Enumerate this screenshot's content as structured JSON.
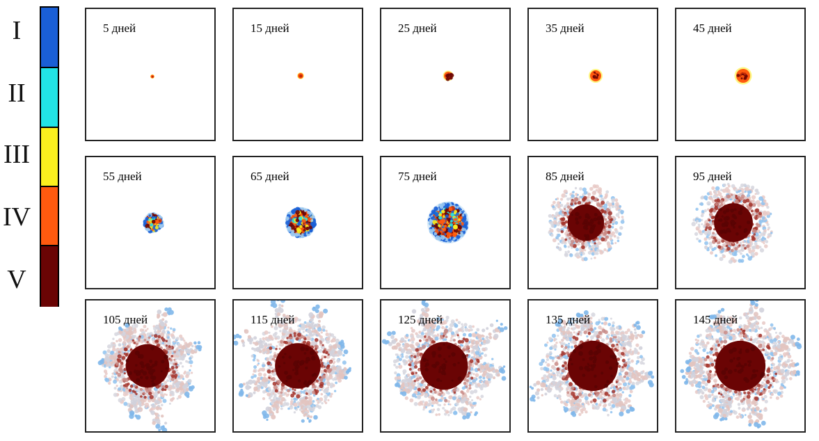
{
  "legend": {
    "stages": [
      {
        "label": "I",
        "color": "#1a5fd6"
      },
      {
        "label": "II",
        "color": "#22e4e6"
      },
      {
        "label": "III",
        "color": "#fbf01e"
      },
      {
        "label": "IV",
        "color": "#ff5a0f"
      },
      {
        "label": "V",
        "color": "#6a0404"
      }
    ]
  },
  "panels": [
    {
      "label": "5 дней",
      "stage": "tiny"
    },
    {
      "label": "15 дней",
      "stage": "tiny"
    },
    {
      "label": "25 дней",
      "stage": "small"
    },
    {
      "label": "35 дней",
      "stage": "small"
    },
    {
      "label": "45 дней",
      "stage": "small"
    },
    {
      "label": "55 дней",
      "stage": "mixed"
    },
    {
      "label": "65 дней",
      "stage": "mixed"
    },
    {
      "label": "75 дней",
      "stage": "mixed"
    },
    {
      "label": "85 дней",
      "stage": "necrotic"
    },
    {
      "label": "95 дней",
      "stage": "necrotic"
    },
    {
      "label": "105 дней",
      "stage": "invasive"
    },
    {
      "label": "115 дней",
      "stage": "invasive"
    },
    {
      "label": "125 дней",
      "stage": "invasive"
    },
    {
      "label": "135 дней",
      "stage": "invasive"
    },
    {
      "label": "145 дней",
      "stage": "invasive"
    }
  ]
}
